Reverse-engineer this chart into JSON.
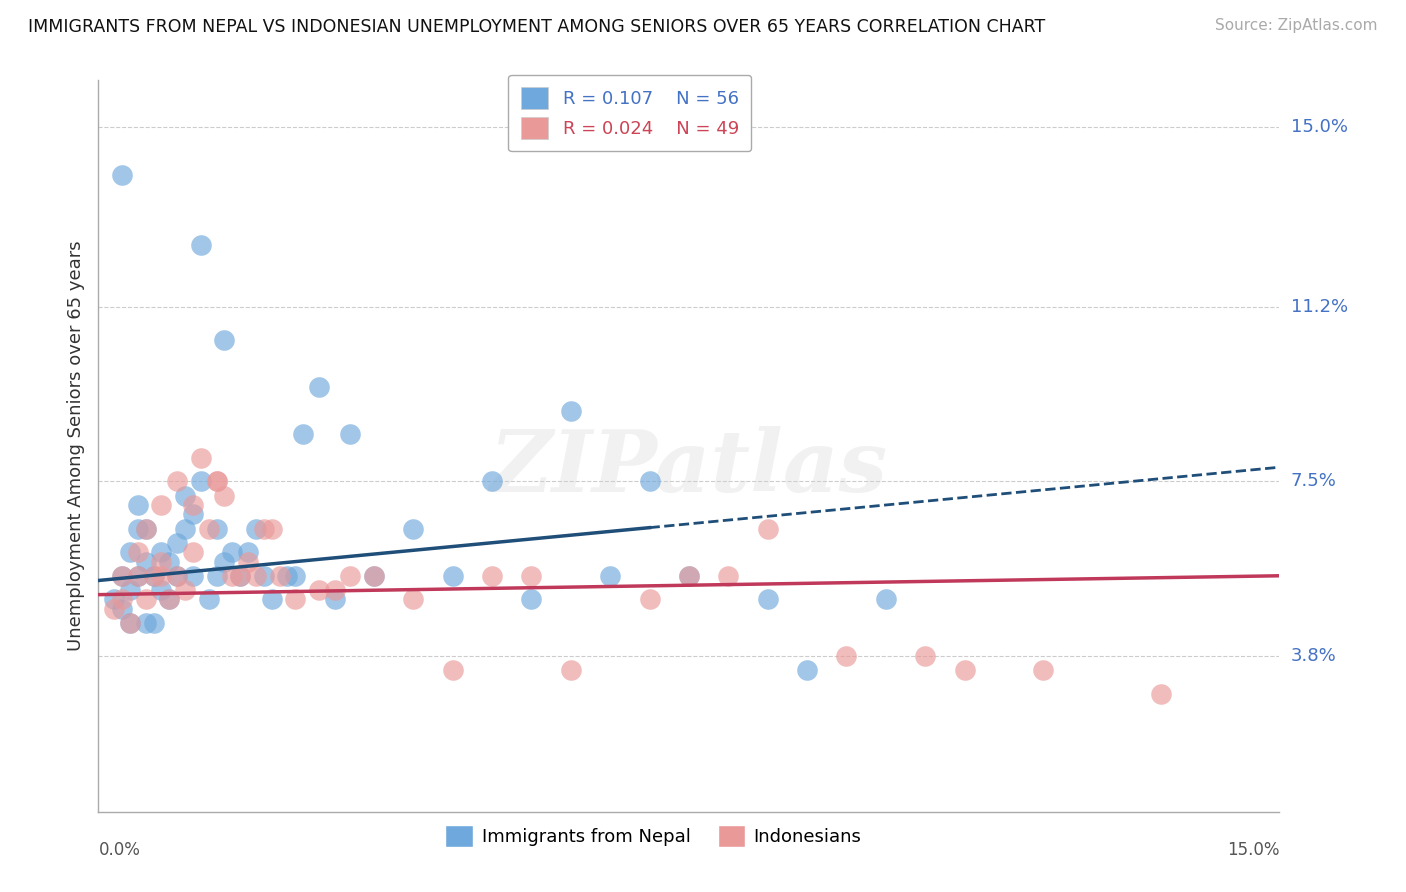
{
  "title": "IMMIGRANTS FROM NEPAL VS INDONESIAN UNEMPLOYMENT AMONG SENIORS OVER 65 YEARS CORRELATION CHART",
  "source": "Source: ZipAtlas.com",
  "ylabel": "Unemployment Among Seniors over 65 years",
  "y_ticks": [
    3.8,
    7.5,
    11.2,
    15.0
  ],
  "y_tick_labels": [
    "3.8%",
    "7.5%",
    "11.2%",
    "15.0%"
  ],
  "xlim": [
    0.0,
    15.0
  ],
  "ylim": [
    0.5,
    16.0
  ],
  "nepal_R": 0.107,
  "nepal_N": 56,
  "indonesian_R": 0.024,
  "indonesian_N": 49,
  "nepal_color": "#6fa8dc",
  "indonesian_color": "#ea9999",
  "nepal_line_color": "#1f4e79",
  "indonesian_line_color": "#c0395a",
  "nepal_line_solid_end": 7.0,
  "nepal_scatter_x": [
    0.2,
    0.3,
    0.3,
    0.4,
    0.4,
    0.5,
    0.5,
    0.5,
    0.6,
    0.6,
    0.7,
    0.7,
    0.8,
    0.8,
    0.9,
    0.9,
    1.0,
    1.0,
    1.1,
    1.1,
    1.2,
    1.2,
    1.3,
    1.4,
    1.5,
    1.5,
    1.6,
    1.7,
    1.8,
    1.9,
    2.0,
    2.1,
    2.2,
    2.4,
    2.5,
    2.6,
    2.8,
    3.0,
    3.5,
    4.5,
    5.0,
    5.5,
    6.5,
    7.0,
    7.5,
    8.5,
    9.0,
    10.0,
    1.3,
    1.6,
    0.3,
    0.4,
    0.6,
    3.2,
    4.0,
    6.0
  ],
  "nepal_scatter_y": [
    5.0,
    4.8,
    5.5,
    5.2,
    6.0,
    5.5,
    6.5,
    7.0,
    5.8,
    6.5,
    4.5,
    5.5,
    5.2,
    6.0,
    5.0,
    5.8,
    5.5,
    6.2,
    6.5,
    7.2,
    5.5,
    6.8,
    7.5,
    5.0,
    5.5,
    6.5,
    5.8,
    6.0,
    5.5,
    6.0,
    6.5,
    5.5,
    5.0,
    5.5,
    5.5,
    8.5,
    9.5,
    5.0,
    5.5,
    5.5,
    7.5,
    5.0,
    5.5,
    7.5,
    5.5,
    5.0,
    3.5,
    5.0,
    12.5,
    10.5,
    14.0,
    4.5,
    4.5,
    8.5,
    6.5,
    9.0
  ],
  "indonesian_scatter_x": [
    0.2,
    0.3,
    0.3,
    0.4,
    0.5,
    0.5,
    0.6,
    0.7,
    0.8,
    0.8,
    0.9,
    1.0,
    1.0,
    1.1,
    1.2,
    1.3,
    1.4,
    1.5,
    1.6,
    1.7,
    1.8,
    1.9,
    2.0,
    2.1,
    2.3,
    2.5,
    2.8,
    3.0,
    3.2,
    3.5,
    4.0,
    4.5,
    5.0,
    5.5,
    6.0,
    7.0,
    7.5,
    8.0,
    8.5,
    9.5,
    10.5,
    11.0,
    12.0,
    13.5,
    0.6,
    0.8,
    1.2,
    1.5,
    2.2
  ],
  "indonesian_scatter_y": [
    4.8,
    5.0,
    5.5,
    4.5,
    5.5,
    6.0,
    6.5,
    5.5,
    5.8,
    7.0,
    5.0,
    5.5,
    7.5,
    5.2,
    7.0,
    8.0,
    6.5,
    7.5,
    7.2,
    5.5,
    5.5,
    5.8,
    5.5,
    6.5,
    5.5,
    5.0,
    5.2,
    5.2,
    5.5,
    5.5,
    5.0,
    3.5,
    5.5,
    5.5,
    3.5,
    5.0,
    5.5,
    5.5,
    6.5,
    3.8,
    3.8,
    3.5,
    3.5,
    3.0,
    5.0,
    5.5,
    6.0,
    7.5,
    6.5
  ],
  "nepal_line_start_x": 0.0,
  "nepal_line_start_y": 5.4,
  "nepal_line_end_x": 15.0,
  "nepal_line_end_y": 7.8,
  "nepal_line_solid_x_end": 7.0,
  "indo_line_start_x": 0.0,
  "indo_line_start_y": 5.1,
  "indo_line_end_x": 15.0,
  "indo_line_end_y": 5.5,
  "watermark_text": "ZIPatlas",
  "background_color": "#ffffff",
  "grid_color": "#cccccc"
}
